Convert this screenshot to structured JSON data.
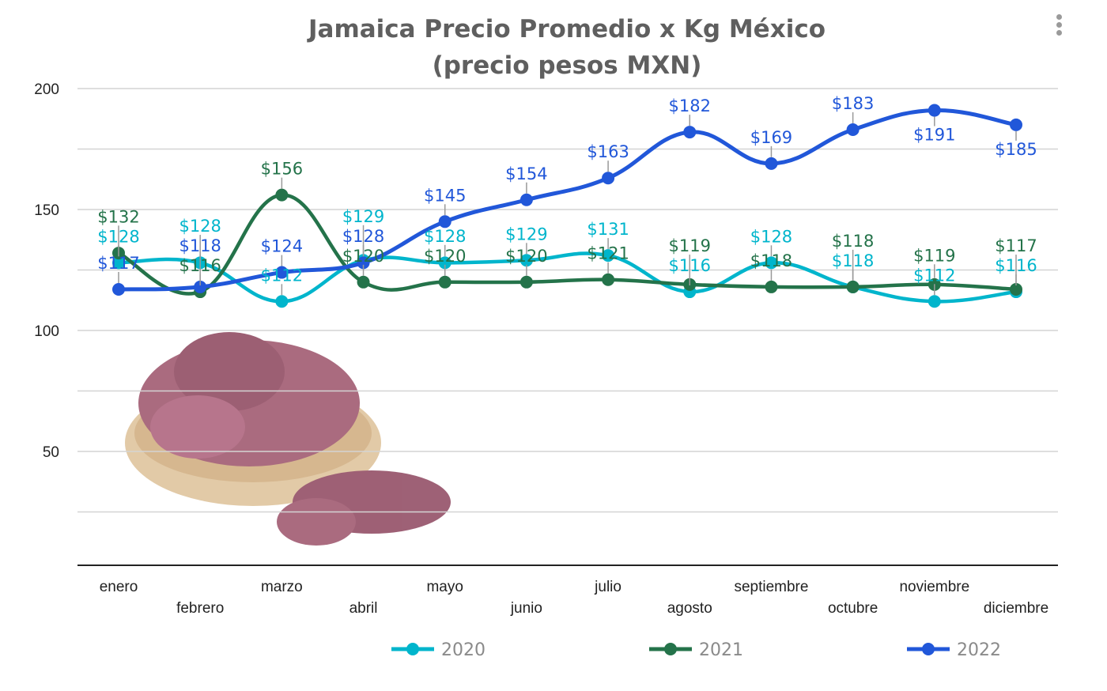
{
  "chart_data": {
    "type": "line",
    "title": "Jamaica Precio Promedio x Kg México",
    "subtitle": "(precio pesos MXN)",
    "xlabel": "",
    "ylabel": "",
    "categories": [
      "enero",
      "febrero",
      "marzo",
      "abril",
      "mayo",
      "junio",
      "julio",
      "agosto",
      "septiembre",
      "octubre",
      "noviembre",
      "diciembre"
    ],
    "ylim": [
      0,
      200
    ],
    "yticks": [
      50,
      100,
      150,
      200
    ],
    "grid": true,
    "legend_position": "bottom",
    "value_prefix": "$",
    "series": [
      {
        "name": "2020",
        "color": "#00b5cc",
        "values": [
          128,
          128,
          112,
          129,
          128,
          129,
          131,
          116,
          128,
          118,
          112,
          116
        ]
      },
      {
        "name": "2021",
        "color": "#24734a",
        "values": [
          132,
          116,
          156,
          120,
          120,
          120,
          121,
          119,
          118,
          118,
          119,
          117
        ]
      },
      {
        "name": "2022",
        "color": "#2157d9",
        "values": [
          117,
          118,
          124,
          128,
          145,
          154,
          163,
          182,
          169,
          183,
          191,
          185
        ]
      }
    ]
  },
  "menu_icon": "kebab-menu-icon",
  "decoration": "hibiscus-basket-image"
}
